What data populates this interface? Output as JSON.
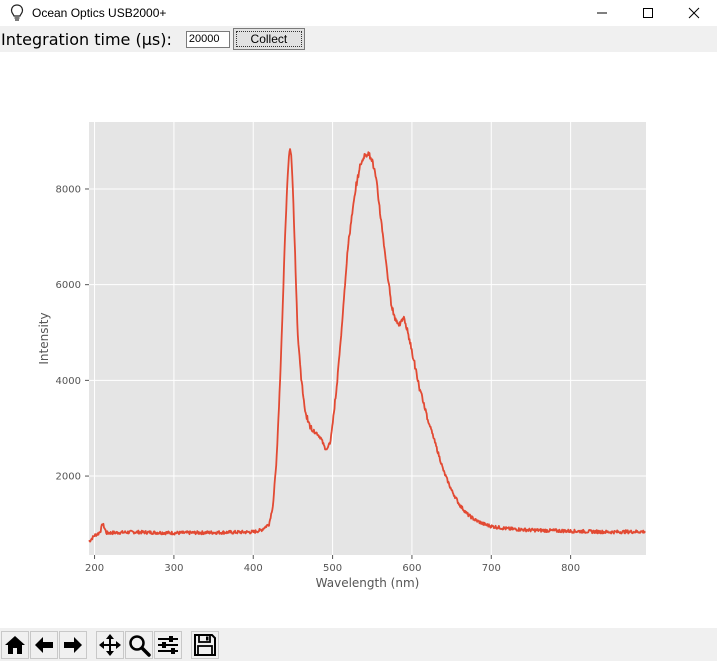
{
  "window": {
    "title": "Ocean Optics USB2000+",
    "app_icon": "lightbulb-icon"
  },
  "controls": {
    "integration_label": "Integration time (µs):",
    "integration_value": "20000",
    "collect_label": "Collect"
  },
  "toolbar": {
    "buttons": [
      "home-icon",
      "back-arrow-icon",
      "forward-arrow-icon",
      "pan-icon",
      "zoom-icon",
      "configure-subplots-icon",
      "save-icon"
    ]
  },
  "chart_data": {
    "type": "line",
    "xlabel": "Wavelength (nm)",
    "ylabel": "Intensity",
    "xlim": [
      193,
      895
    ],
    "ylim": [
      350,
      9400
    ],
    "xticks": [
      200,
      300,
      400,
      500,
      600,
      700,
      800
    ],
    "yticks": [
      2000,
      4000,
      6000,
      8000
    ],
    "grid": true,
    "line_color": "#e24a33",
    "background": "#e5e5e5",
    "series": [
      {
        "x": [
          193,
          200,
          205,
          208,
          210,
          215,
          250,
          300,
          350,
          400,
          410,
          420,
          425,
          430,
          435,
          440,
          443,
          446,
          448,
          450,
          453,
          456,
          460,
          465,
          470,
          475,
          480,
          485,
          490,
          493,
          497,
          500,
          505,
          510,
          515,
          520,
          525,
          530,
          535,
          540,
          545,
          550,
          555,
          560,
          565,
          570,
          575,
          580,
          585,
          590,
          595,
          600,
          605,
          610,
          620,
          630,
          640,
          650,
          660,
          670,
          680,
          690,
          700,
          720,
          750,
          800,
          850,
          895
        ],
        "y": [
          630,
          760,
          800,
          870,
          1020,
          810,
          830,
          810,
          820,
          830,
          870,
          1000,
          1400,
          2500,
          4500,
          7000,
          8200,
          8850,
          8700,
          8000,
          6500,
          5000,
          4100,
          3400,
          3100,
          2950,
          2900,
          2800,
          2600,
          2550,
          2700,
          3100,
          3800,
          4800,
          5900,
          6900,
          7500,
          8100,
          8500,
          8700,
          8750,
          8600,
          8200,
          7500,
          6800,
          6100,
          5500,
          5250,
          5180,
          5300,
          5000,
          4600,
          4200,
          3800,
          3200,
          2650,
          2100,
          1700,
          1400,
          1200,
          1080,
          1000,
          950,
          900,
          870,
          850,
          830,
          840
        ]
      }
    ]
  }
}
